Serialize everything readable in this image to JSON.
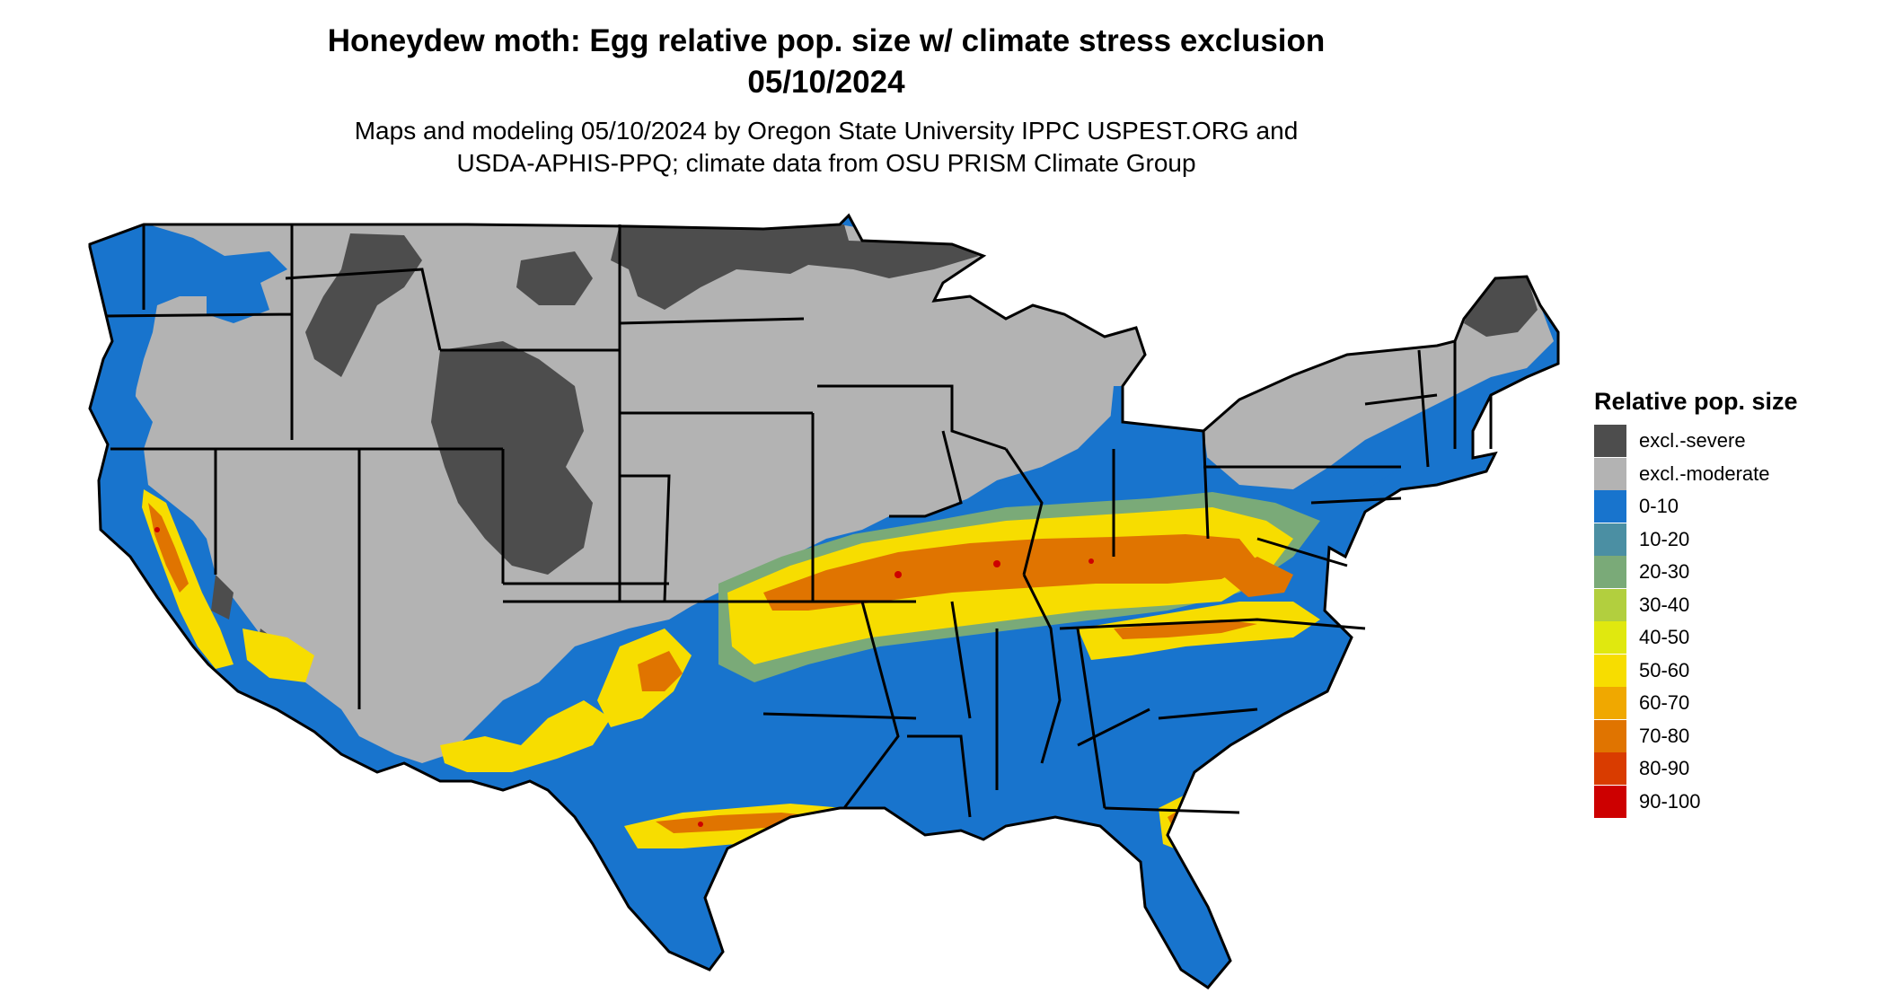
{
  "title_line1": "Honeydew moth: Egg relative pop. size w/ climate stress exclusion",
  "title_line2": "05/10/2024",
  "subtitle_line1": "Maps and modeling 05/10/2024 by Oregon State University IPPC USPEST.ORG and",
  "subtitle_line2": "USDA-APHIS-PPQ; climate data from OSU PRISM Climate Group",
  "legend": {
    "title": "Relative pop. size",
    "items": [
      {
        "label": "excl.-severe",
        "color": "#4d4d4d"
      },
      {
        "label": "excl.-moderate",
        "color": "#b3b3b3"
      },
      {
        "label": "0-10",
        "color": "#1874cd"
      },
      {
        "label": "10-20",
        "color": "#4b8fa3"
      },
      {
        "label": "20-30",
        "color": "#7aaa78"
      },
      {
        "label": "30-40",
        "color": "#b2cf3e"
      },
      {
        "label": "40-50",
        "color": "#e0e80f"
      },
      {
        "label": "50-60",
        "color": "#f7dd00"
      },
      {
        "label": "60-70",
        "color": "#f0a800"
      },
      {
        "label": "70-80",
        "color": "#e07400"
      },
      {
        "label": "80-90",
        "color": "#d93c00"
      },
      {
        "label": "90-100",
        "color": "#cd0000"
      }
    ]
  }
}
